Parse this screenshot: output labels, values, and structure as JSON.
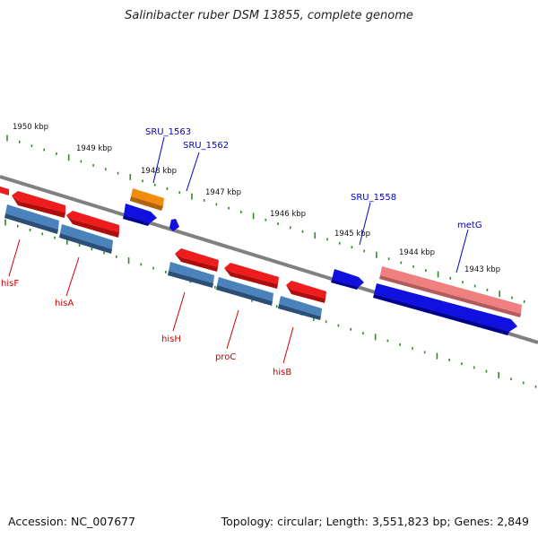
{
  "title": "Salinibacter ruber DSM 13855, complete genome",
  "footer": {
    "accession": "Accession: NC_007677",
    "topology": "Topology: circular; Length: 3,551,823 bp; Genes: 2,849"
  },
  "colors": {
    "backbone": "#808080",
    "tick": "#2e8b22",
    "red_gene": "#ee1c1c",
    "pink_gene": "#f08080",
    "steelblue_gene": "#4a82bb",
    "blue_gene": "#1010e0",
    "orange_gene": "#f28c0f",
    "label_red": "#cc0000",
    "label_blue": "#0000cc"
  },
  "kbp_labels": [
    "1950 kbp",
    "1949 kbp",
    "1948 kbp",
    "1947 kbp",
    "1946 kbp",
    "1945 kbp",
    "1944 kbp",
    "1943 kbp"
  ],
  "gene_labels": {
    "SRU_1563": "SRU_1563",
    "SRU_1562": "SRU_1562",
    "SRU_1558": "SRU_1558",
    "metG": "metG",
    "hisF": "hisF",
    "hisA": "hisA",
    "hisH": "hisH",
    "proC": "proC",
    "hisB": "hisB"
  }
}
